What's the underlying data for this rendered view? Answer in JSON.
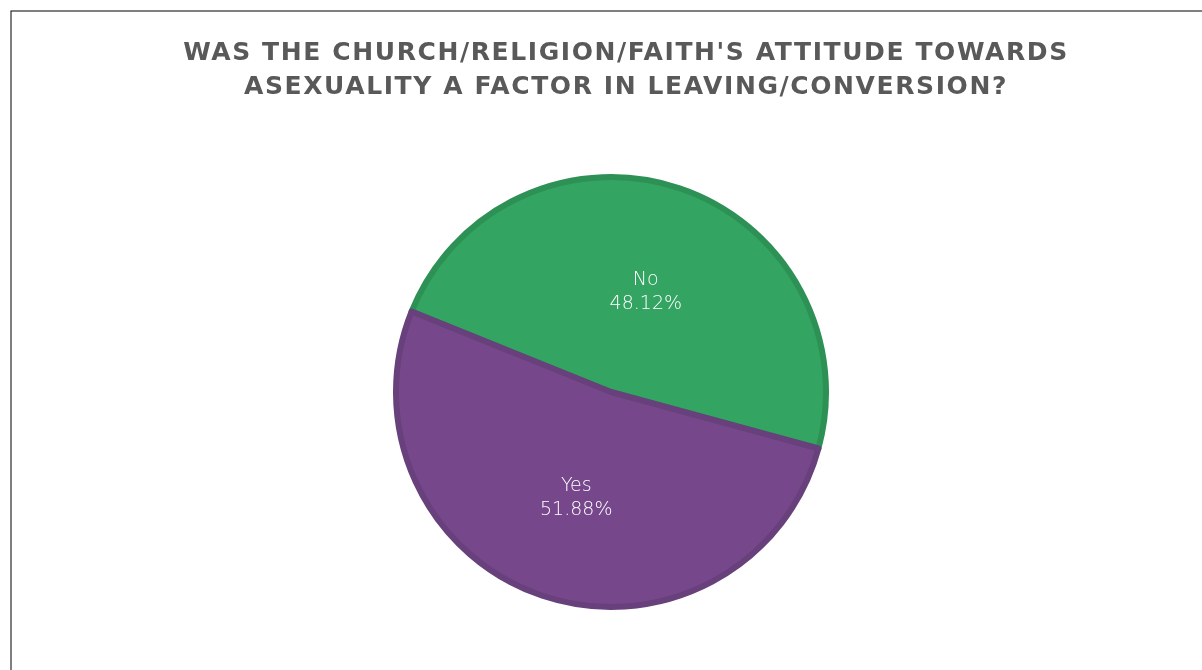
{
  "chart_data": {
    "type": "pie",
    "title": "WAS THE CHURCH/RELIGION/FAITH'S ATTITUDE TOWARDS ASEXUALITY A FACTOR IN LEAVING/CONVERSION?",
    "categories": [
      "No",
      "Yes"
    ],
    "values": [
      48.12,
      51.88
    ],
    "colors": [
      "#33a462",
      "#76488b"
    ],
    "value_labels": [
      "48.12%",
      "51.88%"
    ]
  }
}
